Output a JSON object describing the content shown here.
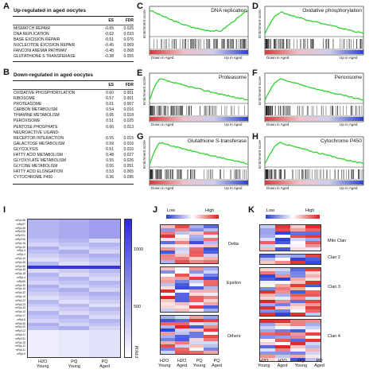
{
  "panels": {
    "A": {
      "letter": "A",
      "title": "Up-regulated in aged oocytes",
      "headers": [
        "",
        "ES",
        "FDR"
      ],
      "rows": [
        [
          "MISMATCH REPAIR",
          "-0.65",
          "0.025"
        ],
        [
          "DNA REPLICATION",
          "-0.62",
          "0.033"
        ],
        [
          "BASE EXCISION REPAIR",
          "-0.51",
          "0.076"
        ],
        [
          "NUCLEOTIDE EXCISION REPAIR",
          "-0.45",
          "0.069"
        ],
        [
          "FANCONI ANEMIA PATHWAY",
          "-0.45",
          "0.068"
        ],
        [
          "GLUTATHIONE S TRANSFERASE",
          "-0.38",
          "0.055"
        ]
      ]
    },
    "B": {
      "letter": "B",
      "title": "Down-regulated in aged oocytes",
      "headers": [
        "",
        "ES",
        "FDR"
      ],
      "rows": [
        [
          "OXIDATIVE PHOSPHORYLATION",
          "0.60",
          "0.001"
        ],
        [
          "RIBOSOME",
          "0.57",
          "0.001"
        ],
        [
          "PROTEASOME",
          "0.61",
          "0.007"
        ],
        [
          "CARBON METABOLISM",
          "0.54",
          "0.016"
        ],
        [
          "THIAMINE METABOLISM",
          "0.66",
          "0.018"
        ],
        [
          "PEROXISOME",
          "0.51",
          "0.025"
        ],
        [
          "PENTOSE PHOSPHATE",
          "0.66",
          "0.013"
        ],
        [
          "NEUROACTIVE LIGAND-",
          "",
          ""
        ],
        [
          "RECEPTOR INTERACTION",
          "0.55",
          "0.015"
        ],
        [
          "GALACTOSE METABOLISM",
          "0.59",
          "0.016"
        ],
        [
          "GLYCOLYSIS",
          "0.51",
          "0.016"
        ],
        [
          "FATTY ACID METABOLISM",
          "0.48",
          "0.027"
        ],
        [
          "GLYOXYLATE METABOLISM",
          "0.55",
          "0.026"
        ],
        [
          "GLYCINE METABOLISM",
          "0.55",
          "0.051"
        ],
        [
          "FATTY ACID ELONGATION",
          "0.53",
          "0.065"
        ],
        [
          "CYTOCHROME P450",
          "0.36",
          "0.095"
        ]
      ]
    },
    "gsea": [
      {
        "letter": "C",
        "title": "DNA replication",
        "down": "Down in Aged",
        "up": "Up in Aged"
      },
      {
        "letter": "D",
        "title": "Oxidative phosphorylation",
        "down": "Down in Aged",
        "up": "Up in Aged"
      },
      {
        "letter": "E",
        "title": "Proteasome",
        "down": "Down in Aged",
        "up": "Up in Aged"
      },
      {
        "letter": "F",
        "title": "Peroxisome",
        "down": "Down in Aged",
        "up": "Up in Aged"
      },
      {
        "letter": "G",
        "title": "Glutathione S-transferase",
        "down": "Down in Aged",
        "up": "Up in Aged"
      },
      {
        "letter": "H",
        "title": "Cytochrome P450",
        "down": "Down in Aged",
        "up": "Up in Aged"
      }
    ],
    "gsea_ylabel": "Enrichment score",
    "I": {
      "letter": "I",
      "colorbar_label": "FPKM",
      "ticks": [
        "1000",
        "500"
      ],
      "xlabels": [
        [
          "H2O",
          "Young"
        ],
        [
          "PQ",
          "Young"
        ],
        [
          "PQ",
          "Aged"
        ]
      ],
      "genes": [
        "mRpL58",
        "mRpS7",
        "mRpL49",
        "mRpS28",
        "mRpS11",
        "mRpS16",
        "mRpL15",
        "mRpL34",
        "mRpL3",
        "mRpL2",
        "mRpL10",
        "mRpL48",
        "mRpL36",
        "mRpL35",
        "mRpL18",
        "mRpL4",
        "mRpS6",
        "mRpL30",
        "mRpL16",
        "mRpL32",
        "mRpL19",
        "mRpL22",
        "mRpL23",
        "mRpL33",
        "mRpL13",
        "mRpL17",
        "mRpL5",
        "mRpL46",
        "mRpL20",
        "mRpS12",
        "mRpL21",
        "mRpS31",
        "mRpL15",
        "mRpL12",
        "mRpL11",
        "mRpL9"
      ]
    },
    "J": {
      "letter": "J",
      "low": "Low",
      "high": "High",
      "groups": [
        "Delta",
        "Epsilon",
        "Others"
      ],
      "xlabels": [
        [
          "H2O",
          "Young"
        ],
        [
          "H2O",
          "Aged"
        ],
        [
          "PQ",
          "Young"
        ],
        [
          "PQ",
          "Aged"
        ]
      ]
    },
    "K": {
      "letter": "K",
      "low": "Low",
      "high": "High",
      "groups": [
        "Mito Clan",
        "Clan 2",
        "Clan 3",
        "Clan 4"
      ],
      "xlabels": [
        [
          "H2O",
          "Young"
        ],
        [
          "H2O",
          "Aged"
        ],
        [
          "PQ",
          "Young"
        ],
        [
          "PQ",
          "Aged"
        ]
      ]
    }
  },
  "colors": {
    "curve": "#2fd12f",
    "low": "#2d3fd6",
    "high": "#e02020",
    "heat_i": "#2a2ad8"
  }
}
